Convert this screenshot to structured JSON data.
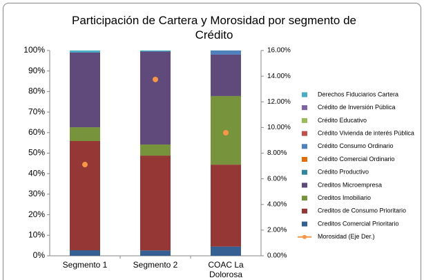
{
  "chart_data": {
    "type": "bar",
    "stacked": true,
    "title": "Participación de Cartera y Morosidad por segmento de Crédito",
    "categories": [
      "Segmento 1",
      "Segmento 2",
      "COAC La Dolorosa"
    ],
    "ylim": [
      0,
      100
    ],
    "yticks": [
      {
        "value": 0,
        "label": "0%"
      },
      {
        "value": 10,
        "label": "10%"
      },
      {
        "value": 20,
        "label": "20%"
      },
      {
        "value": 30,
        "label": "30%"
      },
      {
        "value": 40,
        "label": "40%"
      },
      {
        "value": 50,
        "label": "50%"
      },
      {
        "value": 60,
        "label": "60%"
      },
      {
        "value": 70,
        "label": "70%"
      },
      {
        "value": 80,
        "label": "80%"
      },
      {
        "value": 90,
        "label": "90%"
      },
      {
        "value": 100,
        "label": "100%"
      }
    ],
    "y2lim": [
      0,
      16
    ],
    "y2ticks": [
      {
        "value": 0,
        "label": "0.00%"
      },
      {
        "value": 2,
        "label": "2.00%"
      },
      {
        "value": 4,
        "label": "4.00%"
      },
      {
        "value": 6,
        "label": "6.00%"
      },
      {
        "value": 8,
        "label": "8.00%"
      },
      {
        "value": 10,
        "label": "10.00%"
      },
      {
        "value": 12,
        "label": "12.00%"
      },
      {
        "value": 14,
        "label": "14.00%"
      },
      {
        "value": 16,
        "label": "16.00%"
      }
    ],
    "grid": false,
    "legend": "right",
    "series": [
      {
        "name": "Creditos Comercial Prioritario",
        "color": "#376092",
        "values": [
          2.7,
          2.6,
          4.5
        ]
      },
      {
        "name": "Creditos de Consumo Prioritario",
        "color": "#953735",
        "values": [
          53.2,
          46.2,
          39.9
        ]
      },
      {
        "name": "Creditos Imobiliario",
        "color": "#77933c",
        "values": [
          6.7,
          5.4,
          33.4
        ]
      },
      {
        "name": "Creditos Microempresa",
        "color": "#604a7b",
        "values": [
          36.4,
          45.3,
          20.2
        ]
      },
      {
        "name": "Crédito Productivo",
        "color": "#31859c",
        "values": [
          0,
          0,
          0
        ]
      },
      {
        "name": "Crédito Comercial Ordinario",
        "color": "#e46c0a",
        "values": [
          0,
          0,
          0
        ]
      },
      {
        "name": "Crédito Consumo Ordinario",
        "color": "#4f81bd",
        "values": [
          0,
          0,
          2.0
        ]
      },
      {
        "name": "Crédito Vivienda de interés Pública",
        "color": "#c0504d",
        "values": [
          0,
          0,
          0
        ]
      },
      {
        "name": "Crédito Educativo",
        "color": "#9bbb59",
        "values": [
          0,
          0,
          0
        ]
      },
      {
        "name": "Crédito de Inversión Pública",
        "color": "#8064a2",
        "values": [
          0,
          0,
          0
        ]
      },
      {
        "name": "Derechos Fiduciarios Cartera",
        "color": "#4bacc6",
        "values": [
          1.0,
          0.5,
          0
        ]
      },
      {
        "name": "Morosidad (Eje Der.)",
        "color": "#f79646",
        "axis": "y2",
        "type": "line",
        "values": [
          7.11,
          13.74,
          9.59
        ]
      }
    ]
  }
}
